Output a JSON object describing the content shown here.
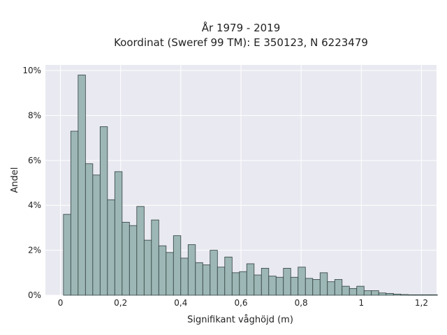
{
  "chart_data": {
    "type": "bar",
    "subtype": "histogram",
    "title_line1": "År 1979 - 2019",
    "title_line2": "Koordinat (Sweref 99 TM): E 350123, N 6223479",
    "xlabel": "Signifikant våghöjd (m)",
    "ylabel": "Andel",
    "xlim": [
      -0.05,
      1.25
    ],
    "ylim": [
      0,
      10.25
    ],
    "x_ticks": [
      0,
      0.2,
      0.4,
      0.6,
      0.8,
      1,
      1.2
    ],
    "x_tick_labels": [
      "0",
      "0,2",
      "0,4",
      "0,6",
      "0,8",
      "1",
      "1,2"
    ],
    "y_ticks": [
      0,
      2,
      4,
      6,
      8,
      10
    ],
    "y_tick_labels": [
      "0%",
      "2%",
      "4%",
      "6%",
      "8%",
      "10%"
    ],
    "grid": true,
    "bin_start": 0.01,
    "bin_width": 0.02437,
    "values": [
      3.6,
      7.3,
      9.8,
      5.85,
      5.35,
      7.5,
      4.25,
      5.5,
      3.25,
      3.1,
      3.95,
      2.45,
      3.35,
      2.2,
      1.9,
      2.65,
      1.65,
      2.25,
      1.45,
      1.35,
      2.0,
      1.25,
      1.7,
      1.0,
      1.05,
      1.4,
      0.9,
      1.2,
      0.85,
      0.8,
      1.2,
      0.8,
      1.25,
      0.75,
      0.7,
      1.0,
      0.6,
      0.7,
      0.4,
      0.3,
      0.4,
      0.2,
      0.2,
      0.1,
      0.08,
      0.05,
      0.03,
      0.02,
      0.02,
      0.02,
      0.02
    ],
    "colors": {
      "bar_fill": "#9db7b6",
      "bar_stroke": "#2f3f3e",
      "plot_background": "#e9e9f1",
      "grid": "#ffffff"
    }
  }
}
